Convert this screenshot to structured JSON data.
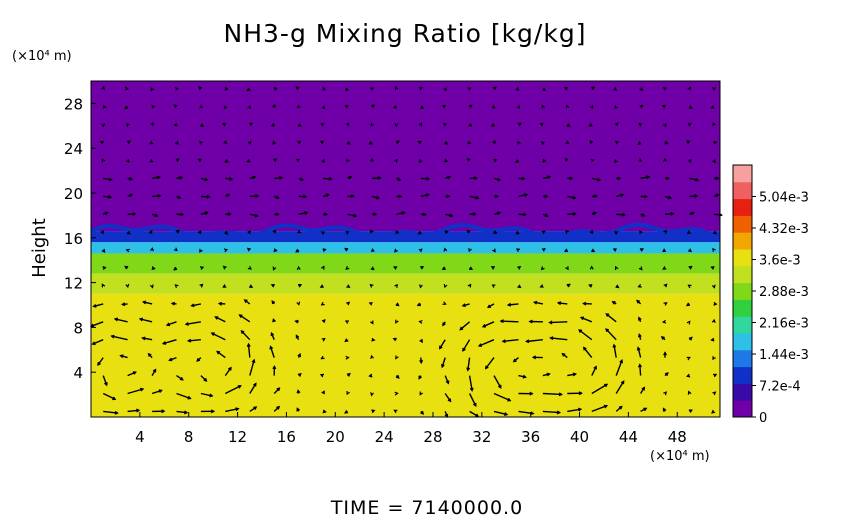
{
  "chart_data": {
    "type": "heatmap",
    "title": "NH3-g Mixing Ratio [kg/kg]",
    "ylabel": "Height",
    "y_unit": "(×10⁴ m)",
    "x_unit": "(×10⁴ m)",
    "footer": "TIME  =  7140000.0",
    "xlim": [
      0,
      51.5
    ],
    "ylim": [
      0,
      30
    ],
    "x_ticks": [
      "4",
      "8",
      "12",
      "16",
      "20",
      "24",
      "28",
      "32",
      "36",
      "40",
      "44",
      "48"
    ],
    "y_ticks": [
      "4",
      "8",
      "12",
      "16",
      "20",
      "24",
      "28"
    ],
    "x_tick_values": [
      4,
      8,
      12,
      16,
      20,
      24,
      28,
      32,
      36,
      40,
      44,
      48
    ],
    "y_tick_values": [
      4,
      8,
      12,
      16,
      20,
      24,
      28
    ],
    "colorbar": {
      "min": 0,
      "max": 0.00576,
      "labels": [
        "5.04e-3",
        "4.32e-3",
        "3.6e-3",
        "2.88e-3",
        "2.16e-3",
        "1.44e-3",
        "7.2e-4",
        "0"
      ],
      "label_values": [
        0.00504,
        0.00432,
        0.0036,
        0.00288,
        0.00216,
        0.00144,
        0.00072,
        0
      ],
      "colors": [
        "#6f00a8",
        "#3a0aa8",
        "#1030c8",
        "#1e78e6",
        "#2ec0e6",
        "#30d8a0",
        "#30d040",
        "#80d818",
        "#c0e020",
        "#e8e010",
        "#f0a800",
        "#f06000",
        "#e82010",
        "#f06060",
        "#f8a0a0"
      ]
    },
    "bands": [
      {
        "name": "upper",
        "y_from": 16.6,
        "y_to": 30,
        "value": 0.0
      },
      {
        "name": "transition",
        "y_from": 15.6,
        "y_to": 16.6,
        "value": 0.0011
      },
      {
        "name": "cyan",
        "y_from": 14.6,
        "y_to": 15.6,
        "value": 0.0019
      },
      {
        "name": "green",
        "y_from": 12.8,
        "y_to": 14.6,
        "value": 0.0027
      },
      {
        "name": "green-yellow",
        "y_from": 11.0,
        "y_to": 12.8,
        "value": 0.0031
      },
      {
        "name": "lower",
        "y_from": 0,
        "y_to": 11.0,
        "value": 0.0035
      }
    ],
    "vector_field": {
      "description": "wind vectors",
      "x_start": 1.0,
      "x_step": 2.0,
      "y_start": 0.5,
      "y_step": 1.6,
      "cells": [
        2,
        10,
        34,
        40
      ]
    }
  }
}
